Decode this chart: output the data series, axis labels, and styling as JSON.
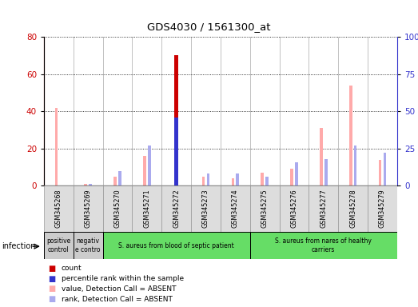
{
  "title": "GDS4030 / 1561300_at",
  "samples": [
    "GSM345268",
    "GSM345269",
    "GSM345270",
    "GSM345271",
    "GSM345272",
    "GSM345273",
    "GSM345274",
    "GSM345275",
    "GSM345276",
    "GSM345277",
    "GSM345278",
    "GSM345279"
  ],
  "count": [
    0,
    0,
    0,
    0,
    70,
    0,
    0,
    0,
    0,
    0,
    0,
    0
  ],
  "percentile": [
    0,
    0,
    0,
    0,
    46,
    0,
    0,
    0,
    0,
    0,
    0,
    0
  ],
  "value_absent": [
    42,
    1,
    5,
    16,
    0,
    5,
    4,
    7,
    9,
    31,
    54,
    14
  ],
  "rank_absent": [
    0,
    1,
    10,
    27,
    0,
    8,
    8,
    6,
    16,
    18,
    27,
    22
  ],
  "count_color": "#cc0000",
  "percentile_color": "#3333cc",
  "value_absent_color": "#ffaaaa",
  "rank_absent_color": "#aaaaee",
  "left_ylim": [
    0,
    80
  ],
  "right_ylim": [
    0,
    100
  ],
  "left_yticks": [
    0,
    20,
    40,
    60,
    80
  ],
  "right_yticks": [
    0,
    25,
    50,
    75,
    100
  ],
  "right_yticklabels": [
    "0",
    "25",
    "50",
    "75",
    "100%"
  ],
  "groups": [
    {
      "label": "positive\ncontrol",
      "start": 0,
      "end": 1,
      "color": "#cccccc"
    },
    {
      "label": "negativ\ne contro",
      "start": 1,
      "end": 2,
      "color": "#cccccc"
    },
    {
      "label": "S. aureus from blood of septic patient",
      "start": 2,
      "end": 7,
      "color": "#66dd66"
    },
    {
      "label": "S. aureus from nares of healthy\ncarriers",
      "start": 7,
      "end": 12,
      "color": "#66dd66"
    }
  ],
  "infection_label": "infection",
  "legend_items": [
    {
      "color": "#cc0000",
      "label": "count"
    },
    {
      "color": "#3333cc",
      "label": "percentile rank within the sample"
    },
    {
      "color": "#ffaaaa",
      "label": "value, Detection Call = ABSENT"
    },
    {
      "color": "#aaaaee",
      "label": "rank, Detection Call = ABSENT"
    }
  ]
}
